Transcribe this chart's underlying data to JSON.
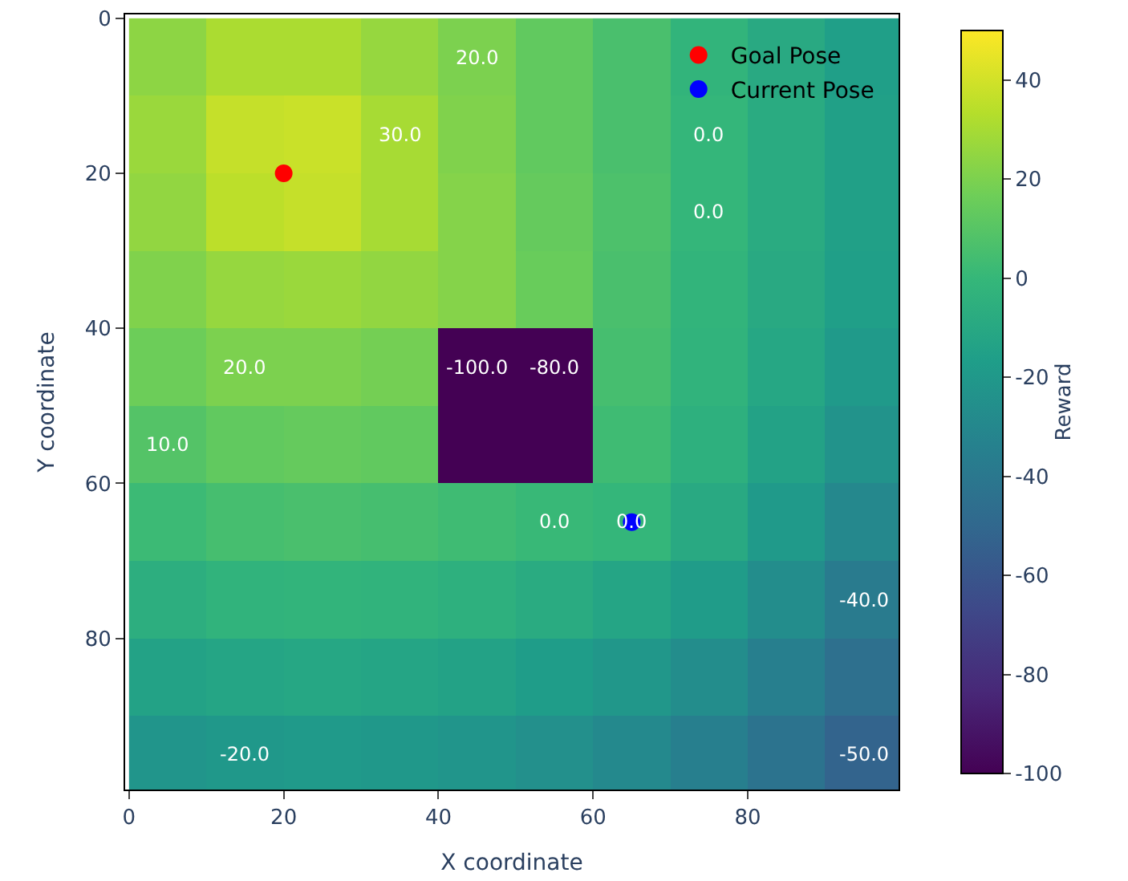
{
  "chart_data": {
    "type": "heatmap",
    "xlabel": "X coordinate",
    "ylabel": "Y coordinate",
    "clabel": "Reward",
    "x": [
      5,
      15,
      25,
      35,
      45,
      55,
      65,
      75,
      85,
      95
    ],
    "y": [
      5,
      15,
      25,
      35,
      45,
      55,
      65,
      75,
      85,
      95
    ],
    "cells": [
      [
        24,
        31,
        31,
        26,
        20,
        13,
        6,
        -2,
        -9,
        -16
      ],
      [
        27,
        37,
        38,
        30,
        21,
        13,
        6,
        -1,
        -8,
        -15
      ],
      [
        25,
        35,
        37,
        30,
        22,
        14,
        7,
        -1,
        -8,
        -15
      ],
      [
        21,
        26,
        27,
        25,
        22,
        15,
        6,
        -2,
        -9,
        -16
      ],
      [
        16,
        20,
        20,
        18,
        -100,
        -100,
        5,
        -3,
        -11,
        -19
      ],
      [
        9,
        13,
        14,
        13,
        -100,
        -100,
        3,
        -5,
        -14,
        -23
      ],
      [
        2,
        5,
        6,
        5,
        3,
        1,
        -1,
        -9,
        -19,
        -30
      ],
      [
        -6,
        -3,
        -2,
        -3,
        -5,
        -8,
        -12,
        -18,
        -27,
        -38
      ],
      [
        -14,
        -12,
        -11,
        -12,
        -14,
        -17,
        -21,
        -27,
        -35,
        -45
      ],
      [
        -22,
        -20,
        -19,
        -20,
        -22,
        -25,
        -29,
        -35,
        -43,
        -52
      ]
    ],
    "clim": [
      -100,
      50
    ],
    "cticks": [
      -100,
      -80,
      -60,
      -40,
      -20,
      0,
      20,
      40
    ],
    "xlim": [
      -0.5,
      99.5
    ],
    "ylim": [
      99.5,
      -0.5
    ],
    "xticks": [
      0,
      20,
      40,
      60,
      80
    ],
    "yticks": [
      0,
      20,
      40,
      60,
      80
    ],
    "series": [
      {
        "type": "scatter",
        "name": "Goal Pose",
        "color": "#ff0000",
        "x": [
          20
        ],
        "values": [
          20
        ]
      },
      {
        "type": "scatter",
        "name": "Current Pose",
        "color": "#0000ff",
        "x": [
          65
        ],
        "values": [
          65
        ]
      }
    ],
    "annotations": [
      "30.0",
      "20.0",
      "20.0",
      "10.0",
      "0.0",
      "0.0",
      "0.0",
      "0.0",
      "-100.0",
      "-80.0",
      "-20.0",
      "-40.0",
      "-50.0"
    ],
    "marker": "circle",
    "legend": "top right"
  }
}
